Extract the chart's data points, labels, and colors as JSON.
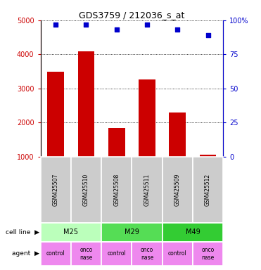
{
  "title": "GDS3759 / 212036_s_at",
  "samples": [
    "GSM425507",
    "GSM425510",
    "GSM425508",
    "GSM425511",
    "GSM425509",
    "GSM425512"
  ],
  "counts": [
    3480,
    4080,
    1840,
    3260,
    2300,
    1050
  ],
  "percentile_ranks": [
    97,
    97,
    93,
    97,
    93,
    89
  ],
  "ylim_left": [
    1000,
    5000
  ],
  "ylim_right": [
    0,
    100
  ],
  "bar_color": "#cc0000",
  "dot_color": "#0000cc",
  "yticks_left": [
    1000,
    2000,
    3000,
    4000,
    5000
  ],
  "yticks_right": [
    0,
    25,
    50,
    75,
    100
  ],
  "cell_line_groups": [
    [
      "M25",
      0,
      1
    ],
    [
      "M29",
      2,
      3
    ],
    [
      "M49",
      4,
      5
    ]
  ],
  "cell_line_colors": {
    "M25": "#bbffbb",
    "M29": "#55dd55",
    "M49": "#33cc33"
  },
  "agent_labels": [
    "control",
    "onconase",
    "control",
    "onconase",
    "control",
    "onconase"
  ],
  "agent_color": "#ee88ee",
  "sample_box_color": "#cccccc",
  "left_axis_color": "#cc0000",
  "right_axis_color": "#0000cc",
  "grid_color": "#888888",
  "background_color": "#ffffff"
}
